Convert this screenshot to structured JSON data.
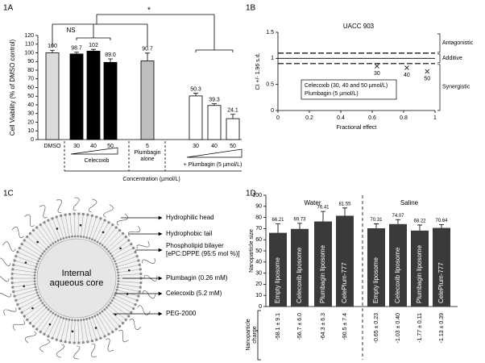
{
  "chart_data": [
    {
      "panel": "1A",
      "type": "bar",
      "y_label": "Cell Viability (% of DMSO control)",
      "categories": [
        "DMSO",
        "30",
        "40",
        "50",
        "5",
        "30",
        "40",
        "50"
      ],
      "values": [
        100,
        98.7,
        102,
        89.0,
        90.7,
        50.3,
        39.3,
        24.1
      ],
      "value_labels": [
        "100",
        "98.7",
        "102",
        "89.0",
        "90.7",
        "50.3",
        "39.3",
        "24.1"
      ],
      "errors": [
        3,
        2,
        2,
        4,
        9,
        3,
        2,
        5
      ],
      "colors": [
        "#dcdcdc",
        "#000000",
        "#000000",
        "#000000",
        "#bdbdbd",
        "#ffffff",
        "#ffffff",
        "#ffffff"
      ],
      "ylim": [
        0,
        120
      ],
      "yticks": [
        0,
        10,
        20,
        30,
        40,
        50,
        60,
        70,
        80,
        90,
        100,
        110,
        120
      ],
      "group_labels": {
        "celecoxib": "Celecoxib",
        "plumbagin": [
          "Plumbagin",
          "alone"
        ],
        "combo": "+ Plumbagin (5 µmol/L)"
      },
      "x_label": "Concentration (µmol/L)",
      "annotations": [
        "NS",
        "*"
      ]
    },
    {
      "panel": "1B",
      "type": "scatter",
      "title": "UACC 903",
      "x_label": "Fractional effect",
      "y_label": "CI +/- 1.96 s.d.",
      "x": [
        0.63,
        0.82,
        0.95
      ],
      "values": [
        0.85,
        0.82,
        0.75
      ],
      "point_labels": [
        "30",
        "40",
        "50"
      ],
      "color": "#333333",
      "xlim": [
        0,
        1
      ],
      "xticks": [
        0,
        0.2,
        0.4,
        0.6,
        0.8,
        1
      ],
      "ylim": [
        0,
        1.5
      ],
      "yticks": [
        0,
        0.5,
        1,
        1.5
      ],
      "reference_lines": [
        {
          "value": 1.1,
          "style": "dashed"
        },
        {
          "value": 1,
          "style": "solid"
        },
        {
          "value": 0.9,
          "style": "dashed"
        }
      ],
      "regions": [
        "Antagonistic",
        "Additive",
        "Synergistic"
      ],
      "legend_text": [
        "Celecoxib (30, 40 and 50 µmol/L)",
        "Plumbagin (5 µmol/L)"
      ]
    },
    {
      "panel": "1D",
      "type": "bar",
      "y_label": "Nanoparticle size",
      "groups": [
        "Water",
        "Saline"
      ],
      "categories": [
        "Empty liposome",
        "Celecoxib liposome",
        "Plumbagin liposome",
        "CelePlum-777",
        "Empty liposome",
        "Celecoxib liposome",
        "Plumbagin liposome",
        "CelePlum-777"
      ],
      "values": [
        66.21,
        69.73,
        76.41,
        81.55,
        70.31,
        74.07,
        68.22,
        70.64
      ],
      "errors": [
        8,
        5,
        9,
        7,
        4,
        4,
        5,
        3
      ],
      "color": "#3a3a3a",
      "ylim": [
        0,
        100
      ],
      "yticks": [
        0,
        10,
        20,
        30,
        40,
        50,
        60,
        70,
        80,
        90,
        100
      ],
      "charge_label": [
        "Nanoparticle",
        "charge"
      ],
      "charges": [
        "-58.1 ± 9.1",
        "-56.7 ± 6.0",
        "-64.3 ± 6.3",
        "-90.5 ± 7.4",
        "-0.65 ± 0.23",
        "-1.03 ± 0.40",
        "-1.77 ± 0.11",
        "-1.13 ± 0.39"
      ]
    }
  ],
  "diagram": {
    "panel": "1C",
    "core_label": [
      "Internal",
      "aqueous core"
    ],
    "labels": [
      [
        "Hydrophilic head"
      ],
      [
        "Hydrophobic tail"
      ],
      [
        "Phospholipid bilayer",
        "[ePC:DPPE (95:5 mol %)]"
      ],
      [
        "Plumbagin (0.26 mM)"
      ],
      [
        "Celecoxib (5.2 mM)"
      ],
      [
        "PEG-2000"
      ]
    ]
  }
}
